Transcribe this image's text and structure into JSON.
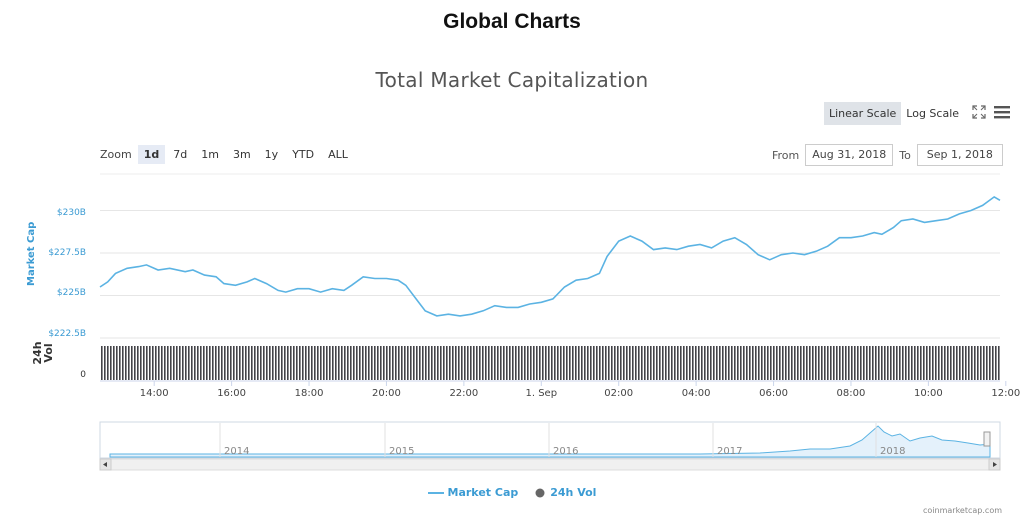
{
  "page": {
    "title": "Global Charts",
    "credit": "coinmarketcap.com"
  },
  "controls": {
    "scale_options": [
      "Linear Scale",
      "Log Scale"
    ],
    "scale_selected": "Linear Scale",
    "zoom_label": "Zoom",
    "zoom_options": [
      "1d",
      "7d",
      "1m",
      "3m",
      "1y",
      "YTD",
      "ALL"
    ],
    "zoom_selected": "1d",
    "from_label": "From",
    "from_value": "Aug 31, 2018",
    "to_label": "To",
    "to_value": "Sep 1, 2018",
    "icons": [
      "fullscreen-icon",
      "menu-icon"
    ]
  },
  "chart_data": {
    "type": "line",
    "title": "Total Market Capitalization",
    "ylabel": "Market Cap",
    "y_ticks": [
      "$230B",
      "$227.5B",
      "$225B",
      "$222.5B"
    ],
    "ylim": [
      222.5,
      231.5
    ],
    "x_ticks": [
      "14:00",
      "16:00",
      "18:00",
      "20:00",
      "22:00",
      "1. Sep",
      "02:00",
      "04:00",
      "06:00",
      "08:00",
      "10:00",
      "12:00"
    ],
    "x_hours": [
      0,
      1,
      2,
      3,
      4,
      5,
      6,
      7,
      8,
      9,
      10,
      11,
      12,
      13,
      14,
      15,
      16,
      17,
      18,
      19,
      20,
      21,
      22,
      23,
      24
    ],
    "series": [
      {
        "name": "Market Cap",
        "color": "#5bb3e3",
        "x": [
          12.6,
          12.8,
          13.0,
          13.3,
          13.6,
          13.8,
          14.1,
          14.4,
          14.8,
          15.0,
          15.3,
          15.6,
          15.8,
          16.1,
          16.4,
          16.6,
          16.9,
          17.2,
          17.4,
          17.7,
          18.0,
          18.3,
          18.6,
          18.9,
          19.1,
          19.4,
          19.7,
          20.0,
          20.3,
          20.5,
          20.8,
          21.0,
          21.3,
          21.6,
          21.9,
          22.2,
          22.5,
          22.8,
          23.1,
          23.4,
          23.7,
          24.0,
          24.3,
          24.6,
          24.9,
          25.2,
          25.5,
          25.7,
          26.0,
          26.3,
          26.6,
          26.9,
          27.2,
          27.5,
          27.8,
          28.1,
          28.4,
          28.7,
          29.0,
          29.3,
          29.6,
          29.9,
          30.2,
          30.5,
          30.8,
          31.1,
          31.4,
          31.7,
          32.0,
          32.3,
          32.6,
          32.8,
          33.1,
          33.3,
          33.6,
          33.9,
          34.2,
          34.5,
          34.8,
          35.1,
          35.4,
          35.7,
          35.85
        ],
        "values": [
          225.5,
          225.8,
          226.3,
          226.6,
          226.7,
          226.8,
          226.5,
          226.6,
          226.4,
          226.5,
          226.2,
          226.1,
          225.7,
          225.6,
          225.8,
          226.0,
          225.7,
          225.3,
          225.2,
          225.4,
          225.4,
          225.2,
          225.4,
          225.3,
          225.6,
          226.1,
          226.0,
          226.0,
          225.9,
          225.6,
          224.7,
          224.1,
          223.8,
          223.9,
          223.8,
          223.9,
          224.1,
          224.4,
          224.3,
          224.3,
          224.5,
          224.6,
          224.8,
          225.5,
          225.9,
          226.0,
          226.3,
          227.3,
          228.2,
          228.5,
          228.2,
          227.7,
          227.8,
          227.7,
          227.9,
          228.0,
          227.8,
          228.2,
          228.4,
          228.0,
          227.4,
          227.1,
          227.4,
          227.5,
          227.4,
          227.6,
          227.9,
          228.4,
          228.4,
          228.5,
          228.7,
          228.6,
          229.0,
          229.4,
          229.5,
          229.3,
          229.4,
          229.5,
          229.8,
          230.0,
          230.3,
          230.8,
          230.6
        ]
      },
      {
        "name": "24h Vol",
        "color": "#434348"
      }
    ],
    "vol_ylabel": "24h Vol",
    "vol_ticks": [
      "0"
    ],
    "navigator_years": [
      "2014",
      "2015",
      "2016",
      "2017",
      "2018"
    ],
    "legend": [
      "Market Cap",
      "24h Vol"
    ],
    "legend_position": "bottom"
  }
}
